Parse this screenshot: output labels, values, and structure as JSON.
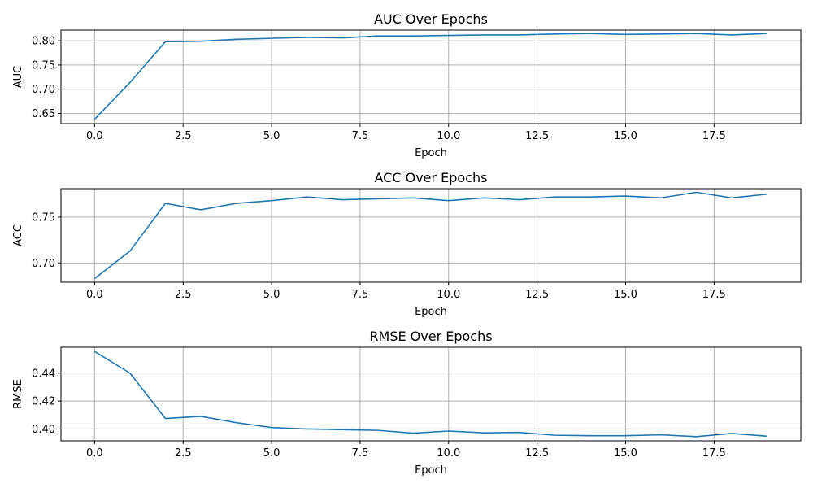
{
  "chart_data": [
    {
      "type": "line",
      "title": "AUC Over Epochs",
      "xlabel": "Epoch",
      "ylabel": "AUC",
      "xlim": [
        -0.95,
        19.95
      ],
      "ylim": [
        0.629,
        0.822
      ],
      "xticks": [
        0.0,
        2.5,
        5.0,
        7.5,
        10.0,
        12.5,
        15.0,
        17.5
      ],
      "xtick_labels": [
        "0.0",
        "2.5",
        "5.0",
        "7.5",
        "10.0",
        "12.5",
        "15.0",
        "17.5"
      ],
      "yticks": [
        0.65,
        0.7,
        0.75,
        0.8
      ],
      "ytick_labels": [
        "0.65",
        "0.70",
        "0.75",
        "0.80"
      ],
      "grid": true,
      "x": [
        0,
        1,
        2,
        3,
        4,
        5,
        6,
        7,
        8,
        9,
        10,
        11,
        12,
        13,
        14,
        15,
        16,
        17,
        18,
        19
      ],
      "values": [
        0.638,
        0.714,
        0.798,
        0.799,
        0.803,
        0.805,
        0.807,
        0.806,
        0.81,
        0.81,
        0.811,
        0.812,
        0.812,
        0.814,
        0.815,
        0.813,
        0.814,
        0.815,
        0.812,
        0.815
      ]
    },
    {
      "type": "line",
      "title": "ACC Over Epochs",
      "xlabel": "Epoch",
      "ylabel": "ACC",
      "xlim": [
        -0.95,
        19.95
      ],
      "ylim": [
        0.679,
        0.781
      ],
      "xticks": [
        0.0,
        2.5,
        5.0,
        7.5,
        10.0,
        12.5,
        15.0,
        17.5
      ],
      "xtick_labels": [
        "0.0",
        "2.5",
        "5.0",
        "7.5",
        "10.0",
        "12.5",
        "15.0",
        "17.5"
      ],
      "yticks": [
        0.7,
        0.75
      ],
      "ytick_labels": [
        "0.70",
        "0.75"
      ],
      "grid": true,
      "x": [
        0,
        1,
        2,
        3,
        4,
        5,
        6,
        7,
        8,
        9,
        10,
        11,
        12,
        13,
        14,
        15,
        16,
        17,
        18,
        19
      ],
      "values": [
        0.683,
        0.713,
        0.765,
        0.758,
        0.765,
        0.768,
        0.772,
        0.769,
        0.77,
        0.771,
        0.768,
        0.771,
        0.769,
        0.772,
        0.772,
        0.773,
        0.771,
        0.777,
        0.771,
        0.775
      ]
    },
    {
      "type": "line",
      "title": "RMSE Over Epochs",
      "xlabel": "Epoch",
      "ylabel": "RMSE",
      "xlim": [
        -0.95,
        19.95
      ],
      "ylim": [
        0.3915,
        0.4585
      ],
      "xticks": [
        0.0,
        2.5,
        5.0,
        7.5,
        10.0,
        12.5,
        15.0,
        17.5
      ],
      "xtick_labels": [
        "0.0",
        "2.5",
        "5.0",
        "7.5",
        "10.0",
        "12.5",
        "15.0",
        "17.5"
      ],
      "yticks": [
        0.4,
        0.42,
        0.44
      ],
      "ytick_labels": [
        "0.40",
        "0.42",
        "0.44"
      ],
      "grid": true,
      "x": [
        0,
        1,
        2,
        3,
        4,
        5,
        6,
        7,
        8,
        9,
        10,
        11,
        12,
        13,
        14,
        15,
        16,
        17,
        18,
        19
      ],
      "values": [
        0.4555,
        0.44,
        0.4075,
        0.409,
        0.4045,
        0.401,
        0.4,
        0.3995,
        0.399,
        0.397,
        0.3985,
        0.3972,
        0.3975,
        0.3955,
        0.3952,
        0.3952,
        0.3958,
        0.3945,
        0.3968,
        0.3948
      ]
    }
  ]
}
